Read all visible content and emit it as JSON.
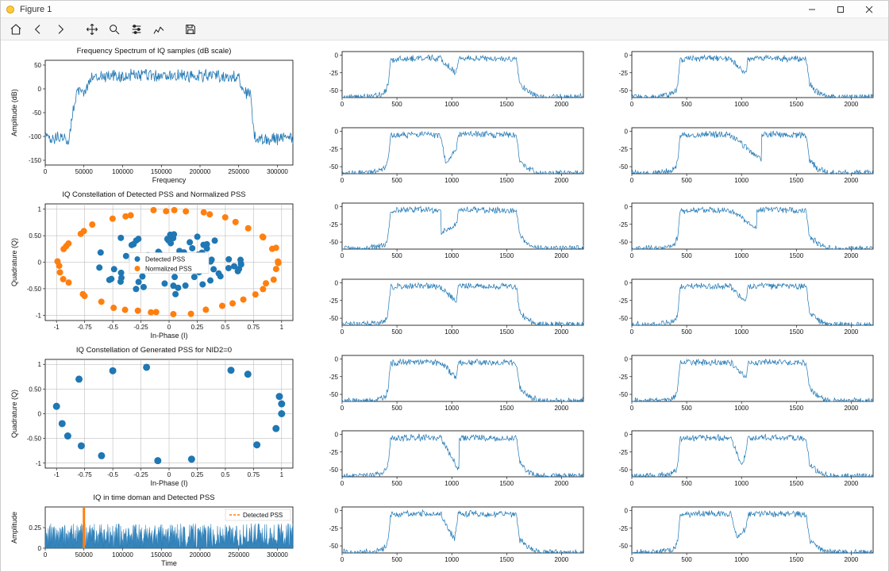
{
  "window": {
    "title": "Figure 1"
  },
  "toolbar": {
    "home": "Home",
    "back": "Back",
    "forward": "Forward",
    "pan": "Pan",
    "zoom": "Zoom",
    "configure": "Subplots",
    "edit": "Edit",
    "save": "Save"
  },
  "palette": {
    "series_blue": "#1f77b4",
    "series_orange": "#ff7f0e",
    "axis": "#000000",
    "grid": "#b0b0b0",
    "bg": "#ffffff"
  },
  "fonts": {
    "title_pt": 9.5,
    "label_pt": 9,
    "tick_pt": 8,
    "family": "Segoe UI"
  },
  "left_plots": {
    "spectrum": {
      "type": "line",
      "title": "Frequency Spectrum of IQ samples (dB scale)",
      "xlabel": "Frequency",
      "ylabel": "Amplitude (dB)",
      "xlim": [
        0,
        320000
      ],
      "ylim": [
        -160,
        60
      ],
      "xticks": [
        0,
        50000,
        100000,
        150000,
        200000,
        250000,
        300000
      ],
      "yticks": [
        -150,
        -100,
        -50,
        0,
        50
      ],
      "line_color": "#1f77b4",
      "line_width": 0.8,
      "profile": [
        [
          0,
          -100
        ],
        [
          2000,
          -95
        ],
        [
          6000,
          -105
        ],
        [
          10000,
          -100
        ],
        [
          20000,
          -100
        ],
        [
          30000,
          -105
        ],
        [
          40000,
          -5
        ],
        [
          42000,
          0
        ],
        [
          45000,
          -5
        ],
        [
          50000,
          -5
        ],
        [
          60000,
          30
        ],
        [
          65000,
          30
        ],
        [
          80000,
          32
        ],
        [
          100000,
          30
        ],
        [
          120000,
          33
        ],
        [
          140000,
          30
        ],
        [
          160000,
          30
        ],
        [
          180000,
          32
        ],
        [
          200000,
          30
        ],
        [
          220000,
          32
        ],
        [
          240000,
          30
        ],
        [
          250000,
          30
        ],
        [
          255000,
          0
        ],
        [
          260000,
          -5
        ],
        [
          265000,
          -5
        ],
        [
          270000,
          -100
        ],
        [
          280000,
          -100
        ],
        [
          290000,
          -105
        ],
        [
          300000,
          -100
        ],
        [
          315000,
          -100
        ]
      ],
      "noise_amp": 12
    },
    "constellation1": {
      "type": "scatter",
      "title": "IQ Constellation of Detected PSS and Normalized PSS",
      "xlabel": "In-Phase (I)",
      "ylabel": "Quadrature (Q)",
      "xlim": [
        -1.1,
        1.1
      ],
      "ylim": [
        -1.1,
        1.1
      ],
      "xticks": [
        -1.0,
        -0.75,
        -0.5,
        -0.25,
        0.0,
        0.25,
        0.5,
        0.75,
        1.0
      ],
      "yticks": [
        -1.0,
        -0.5,
        0.0,
        0.5,
        1.0
      ],
      "grid": true,
      "legend": {
        "items": [
          {
            "label": "Detected PSS",
            "color": "#1f77b4",
            "marker": "circle"
          },
          {
            "label": "Normalized PSS",
            "color": "#ff7f0e",
            "marker": "circle-open"
          }
        ],
        "loc": "center"
      },
      "marker_size": 4,
      "detected_n": 70,
      "detected_r": 0.65,
      "normalized_n": 48,
      "normalized_r": 0.97
    },
    "constellation2": {
      "type": "scatter",
      "title": "IQ Constellation of Generated PSS for NID2=0",
      "xlabel": "In-Phase (I)",
      "ylabel": "Quadrature (Q)",
      "xlim": [
        -1.1,
        1.1
      ],
      "ylim": [
        -1.1,
        1.1
      ],
      "xticks": [
        -1.0,
        -0.75,
        -0.5,
        -0.25,
        0.0,
        0.25,
        0.5,
        0.75,
        1.0
      ],
      "yticks": [
        -1.0,
        -0.5,
        0.0,
        0.5,
        1.0
      ],
      "grid": true,
      "marker_size": 4.5,
      "color": "#1f77b4",
      "points": [
        [
          -1.0,
          0.15
        ],
        [
          -0.9,
          -0.45
        ],
        [
          -0.8,
          0.7
        ],
        [
          -0.78,
          -0.65
        ],
        [
          -0.6,
          -0.85
        ],
        [
          -0.5,
          0.87
        ],
        [
          -0.2,
          0.94
        ],
        [
          -0.1,
          -0.95
        ],
        [
          0.2,
          -0.92
        ],
        [
          0.55,
          0.88
        ],
        [
          0.7,
          0.8
        ],
        [
          0.78,
          -0.63
        ],
        [
          0.98,
          0.35
        ],
        [
          1.0,
          0.2
        ],
        [
          1.0,
          0.0
        ],
        [
          0.95,
          -0.3
        ],
        [
          -0.95,
          -0.2
        ]
      ]
    },
    "timedomain": {
      "type": "line",
      "title": "IQ in time doman and Detected PSS",
      "xlabel": "Time",
      "ylabel": "Amplitude",
      "xlim": [
        0,
        320000
      ],
      "ylim": [
        0,
        0.5
      ],
      "xticks": [
        0,
        50000,
        100000,
        150000,
        200000,
        250000,
        300000
      ],
      "yticks": [
        0.0,
        0.25
      ],
      "line_color": "#1f77b4",
      "fill_noise_amp": 0.3,
      "marker_x": 50000,
      "marker_color": "#ff7f0e",
      "legend": {
        "items": [
          {
            "label": "Detected PSS",
            "color": "#ff7f0e",
            "style": "dashed"
          }
        ],
        "loc": "upper-right"
      }
    }
  },
  "small_spectrum_template": {
    "type": "line",
    "xlim": [
      0,
      2200
    ],
    "ylim": [
      -60,
      5
    ],
    "xticks": [
      0,
      500,
      1000,
      1500,
      2000
    ],
    "yticks": [
      -50,
      -25,
      0
    ],
    "line_color": "#1f77b4",
    "line_width": 0.7,
    "profile": [
      [
        0,
        -58
      ],
      [
        200,
        -58
      ],
      [
        350,
        -55
      ],
      [
        400,
        -50
      ],
      [
        420,
        -40
      ],
      [
        440,
        -5
      ],
      [
        500,
        -4
      ],
      [
        700,
        -3
      ],
      [
        900,
        -4
      ],
      [
        1040,
        -25
      ],
      [
        1060,
        -4
      ],
      [
        1200,
        -3
      ],
      [
        1400,
        -4
      ],
      [
        1550,
        -4
      ],
      [
        1590,
        -5
      ],
      [
        1620,
        -40
      ],
      [
        1700,
        -52
      ],
      [
        1800,
        -58
      ],
      [
        2000,
        -58
      ],
      [
        2150,
        -58
      ]
    ],
    "noise_amp": 4
  },
  "small_count_per_column": 7
}
